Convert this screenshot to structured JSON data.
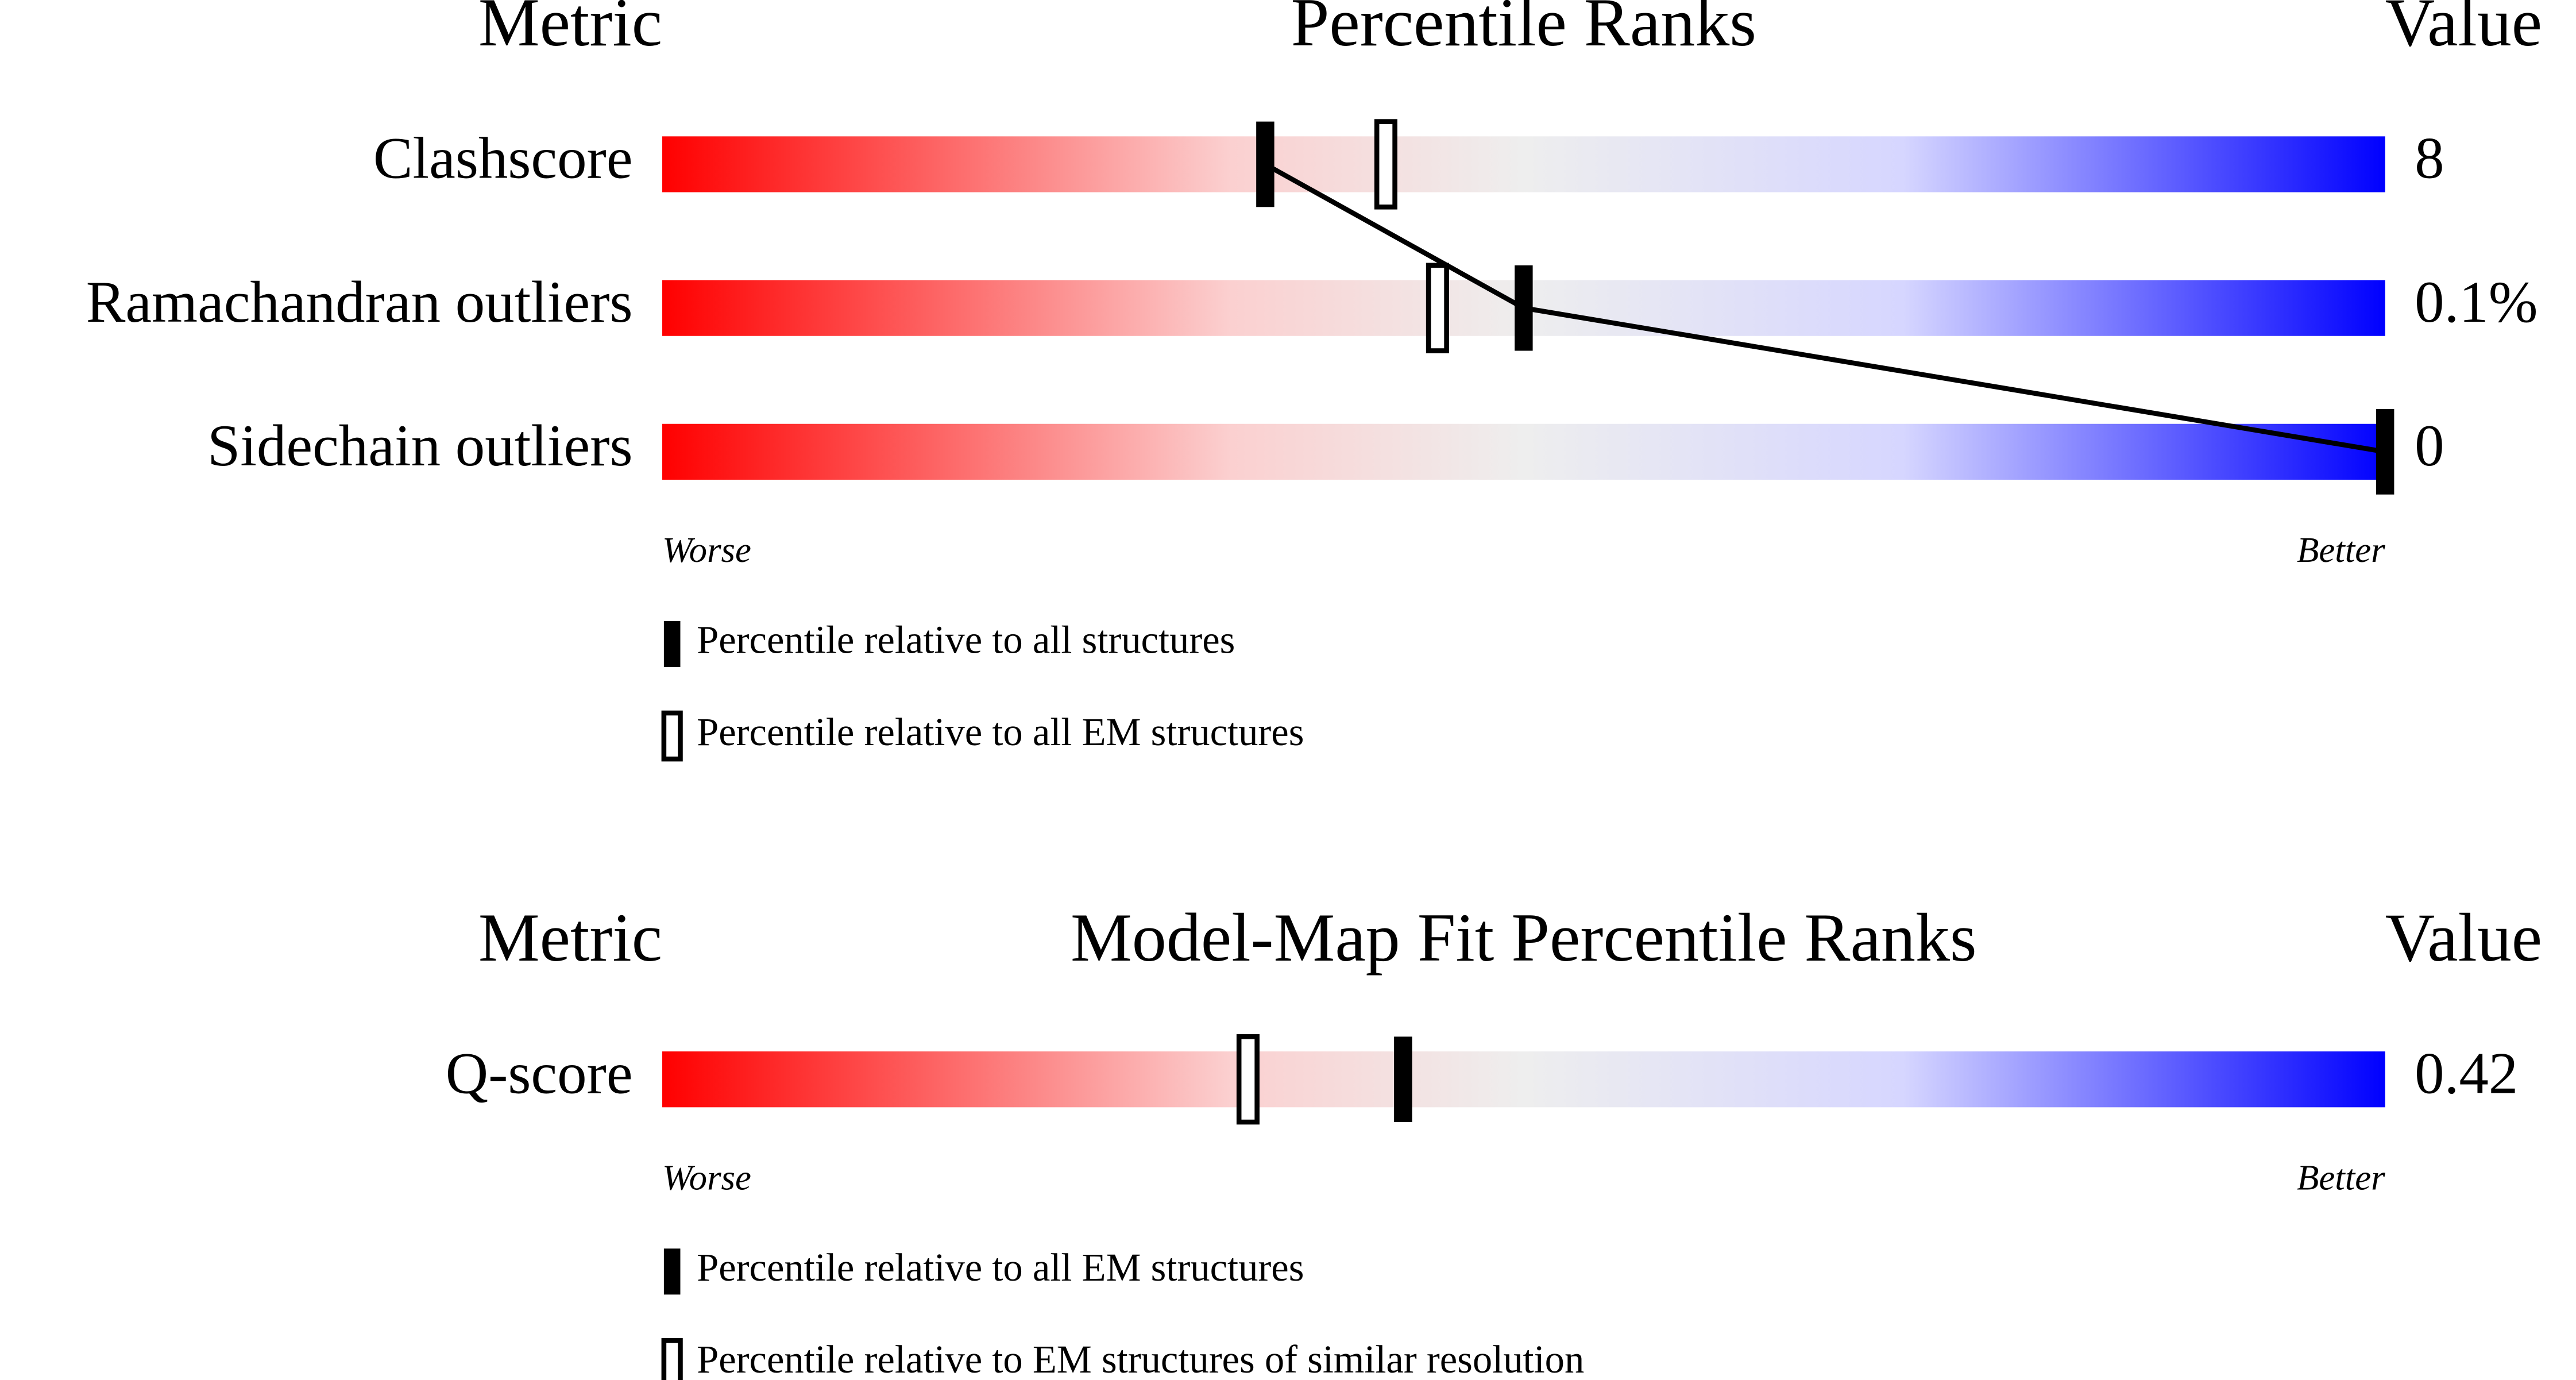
{
  "chart_data": [
    {
      "type": "slider",
      "metric_header": "Metric",
      "title": "Percentile Ranks",
      "value_header": "Value",
      "categories": [
        "Clashscore",
        "Ramachandran outliers",
        "Sidechain outliers"
      ],
      "metric_values": [
        "8",
        "0.1%",
        "0"
      ],
      "xlim": [
        0,
        100
      ],
      "low_label": "Worse",
      "high_label": "Better",
      "series": [
        {
          "name": "Percentile relative to all structures",
          "color": "#000000",
          "style": "filled",
          "connected": true,
          "values": [
            35,
            50,
            100
          ]
        },
        {
          "name": "Percentile relative to all EM structures",
          "color": "#000000",
          "style": "outline",
          "connected": false,
          "values": [
            42,
            45,
            null
          ]
        }
      ]
    },
    {
      "type": "slider",
      "metric_header": "Metric",
      "title": "Model-Map Fit Percentile Ranks",
      "value_header": "Value",
      "categories": [
        "Q-score"
      ],
      "metric_values": [
        "0.42"
      ],
      "xlim": [
        0,
        100
      ],
      "low_label": "Worse",
      "high_label": "Better",
      "series": [
        {
          "name": "Percentile relative to all EM structures",
          "color": "#000000",
          "style": "filled",
          "connected": false,
          "values": [
            43
          ]
        },
        {
          "name": "Percentile relative to EM structures of similar resolution",
          "color": "#000000",
          "style": "outline",
          "connected": false,
          "values": [
            34
          ]
        }
      ]
    }
  ]
}
